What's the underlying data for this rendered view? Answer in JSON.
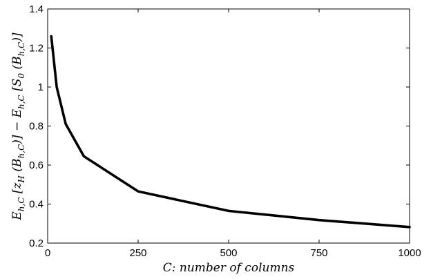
{
  "chart_data": {
    "type": "line",
    "xlabel": "C: number of columns",
    "ylabel": "E_{h,C}[z_H(B_{h,C})] − E_{h,C}[S_0(B_{h,C})]",
    "ylabel_parts": {
      "e1": "E",
      "sub1": "h,C",
      "open1": " [",
      "z": "z",
      "zsub": "H",
      "arg1": " (B",
      "argsub1": "h,C",
      "close1": ")]",
      "minus": " − ",
      "e2": "E",
      "sub2": "h,C",
      "open2": " [",
      "s": "S",
      "ssub": "0",
      "arg2": " (B",
      "argsub2": "h,C",
      "close2": ")]"
    },
    "xlim": [
      0,
      1000
    ],
    "ylim": [
      0.2,
      1.4
    ],
    "xticks": [
      0,
      250,
      500,
      750,
      1000
    ],
    "yticks": [
      0.2,
      0.4,
      0.6,
      0.8,
      1,
      1.2,
      1.4
    ],
    "grid": false,
    "series": [
      {
        "x": [
          10,
          25,
          50,
          100,
          250,
          500,
          750,
          1000
        ],
        "y": [
          1.26,
          1.0,
          0.81,
          0.645,
          0.465,
          0.365,
          0.318,
          0.282
        ],
        "color": "#000000"
      }
    ]
  }
}
